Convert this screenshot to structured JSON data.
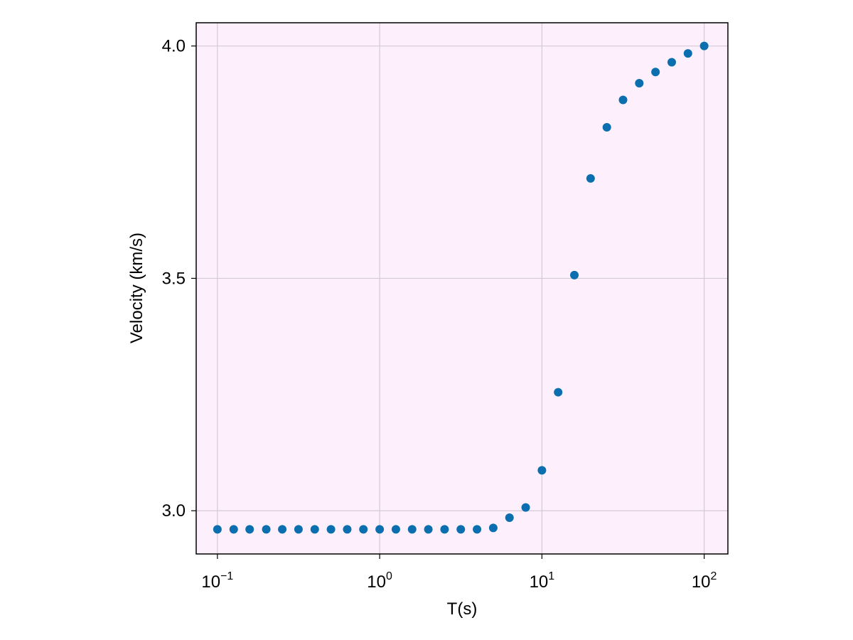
{
  "chart_data": {
    "type": "scatter",
    "xlabel": "T(s)",
    "ylabel": "Velocity (km/s)",
    "x_scale": "log10",
    "xlim": [
      0.074,
      140
    ],
    "ylim": [
      2.907,
      4.05
    ],
    "x_ticks": [
      {
        "value": 0.1,
        "base": "10",
        "exp": "−1"
      },
      {
        "value": 1,
        "base": "10",
        "exp": "0"
      },
      {
        "value": 10,
        "base": "10",
        "exp": "1"
      },
      {
        "value": 100,
        "base": "10",
        "exp": "2"
      }
    ],
    "y_ticks": [
      {
        "value": 3.0,
        "label": "3.0"
      },
      {
        "value": 3.5,
        "label": "3.5"
      },
      {
        "value": 4.0,
        "label": "4.0"
      }
    ],
    "grid": true,
    "colors": {
      "background": "#fdf0fc",
      "marker": "#0b6eaf",
      "grid": "#d4c9d6",
      "frame": "#000000"
    },
    "series": [
      {
        "x": [
          0.1,
          0.126,
          0.158,
          0.2,
          0.251,
          0.316,
          0.398,
          0.501,
          0.631,
          0.794,
          1.0,
          1.259,
          1.585,
          1.995,
          2.512,
          3.162,
          3.981,
          5.012,
          6.31,
          7.943,
          10.0,
          12.59,
          15.85,
          19.95,
          25.12,
          31.62,
          39.81,
          50.12,
          63.1,
          79.43,
          100.0
        ],
        "y": [
          2.96,
          2.96,
          2.96,
          2.96,
          2.96,
          2.96,
          2.96,
          2.96,
          2.96,
          2.96,
          2.96,
          2.96,
          2.96,
          2.96,
          2.96,
          2.96,
          2.96,
          2.963,
          2.985,
          3.007,
          3.087,
          3.255,
          3.507,
          3.715,
          3.825,
          3.884,
          3.92,
          3.944,
          3.965,
          3.984,
          4.0
        ]
      }
    ]
  }
}
